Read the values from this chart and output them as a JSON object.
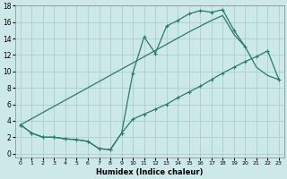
{
  "xlabel": "Humidex (Indice chaleur)",
  "bg_color": "#cce8e8",
  "grid_color": "#aacece",
  "line_color": "#2a7a6a",
  "xlim": [
    -0.5,
    23.5
  ],
  "ylim": [
    -0.5,
    18
  ],
  "xticks": [
    0,
    1,
    2,
    3,
    4,
    5,
    6,
    7,
    8,
    9,
    10,
    11,
    12,
    13,
    14,
    15,
    16,
    17,
    18,
    19,
    20,
    21,
    22,
    23
  ],
  "yticks": [
    0,
    2,
    4,
    6,
    8,
    10,
    12,
    14,
    16,
    18
  ],
  "line1_x": [
    0,
    1,
    2,
    3,
    4,
    5,
    6,
    7,
    8,
    9,
    10,
    11,
    12,
    13,
    14,
    15,
    16,
    17,
    18,
    19,
    20
  ],
  "line1_y": [
    3.5,
    2.5,
    2.0,
    2.0,
    1.8,
    1.7,
    1.5,
    0.6,
    0.5,
    2.5,
    9.8,
    14.2,
    12.2,
    15.5,
    16.2,
    17.0,
    17.4,
    17.2,
    17.5,
    15.0,
    13.0
  ],
  "line2_x": [
    0,
    1,
    2,
    3,
    4,
    5,
    6,
    7,
    8,
    9,
    10,
    11,
    12,
    13,
    14,
    15,
    16,
    17,
    18,
    19,
    20,
    21,
    22,
    23
  ],
  "line2_y": [
    3.5,
    2.5,
    2.0,
    2.0,
    1.8,
    1.7,
    1.5,
    0.6,
    0.5,
    2.5,
    4.2,
    4.8,
    5.4,
    6.0,
    6.8,
    7.5,
    8.2,
    9.0,
    9.8,
    10.5,
    11.2,
    11.8,
    12.5,
    9.0
  ],
  "line3_x": [
    0,
    15,
    16,
    17,
    18,
    19,
    20,
    21,
    22,
    23
  ],
  "line3_y": [
    3.5,
    14.8,
    15.5,
    16.2,
    16.8,
    14.5,
    13.0,
    10.5,
    9.5,
    9.0
  ]
}
